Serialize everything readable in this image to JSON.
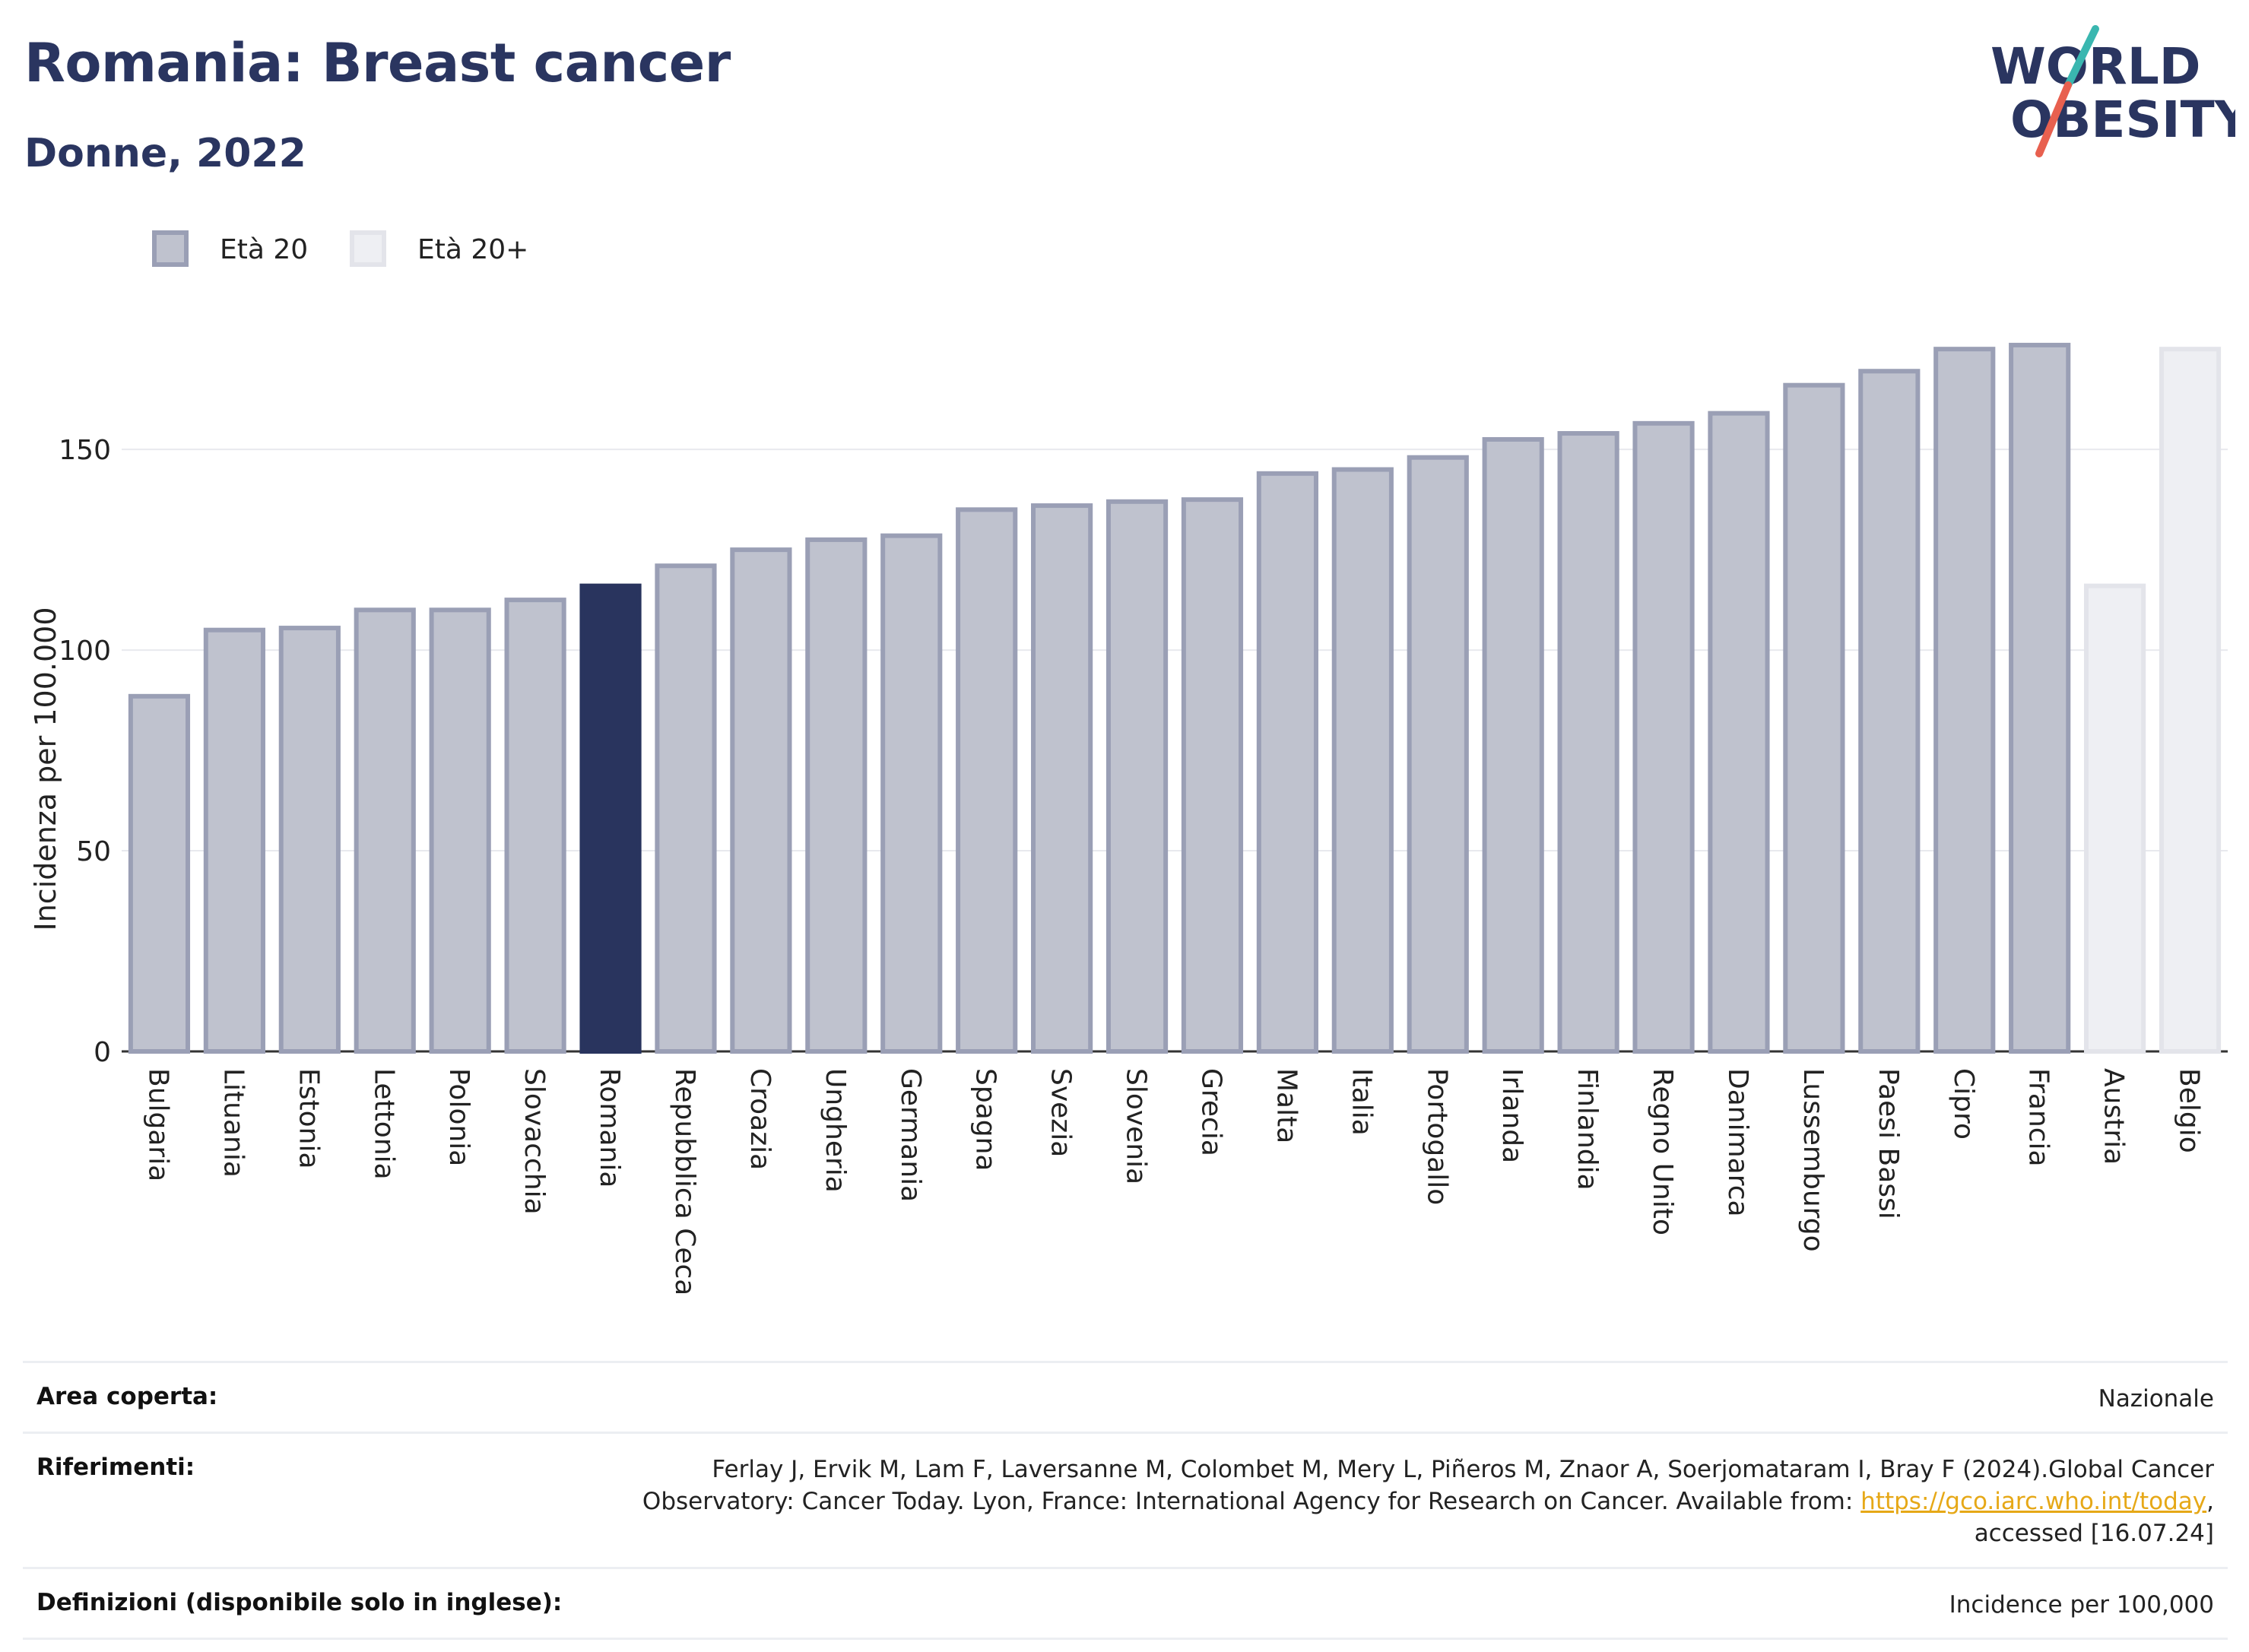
{
  "header": {
    "title": "Romania: Breast cancer",
    "subtitle": "Donne, 2022",
    "logo_line1": "WORLD",
    "logo_line2": "OBESITY"
  },
  "colors": {
    "navy": "#2a3560",
    "bar_fill": "#bfc2ce",
    "bar_stroke": "#9a9fb5",
    "bar_light_fill": "#eeeff3",
    "bar_light_stroke": "#e3e4ea",
    "highlight": "#29345e",
    "logo_teal": "#3ab7b0",
    "logo_red": "#e8604f"
  },
  "chart_data": {
    "type": "bar",
    "title": "",
    "xlabel": "",
    "ylabel": "Incidenza per 100.000",
    "ylim": [
      0,
      190
    ],
    "yticks": [
      0,
      50,
      100,
      150
    ],
    "legend": [
      {
        "name": "Età 20",
        "style": "dark"
      },
      {
        "name": "Età 20+",
        "style": "light"
      }
    ],
    "highlight_category": "Romania",
    "categories": [
      "Bulgaria",
      "Lituania",
      "Estonia",
      "Lettonia",
      "Polonia",
      "Slovacchia",
      "Romania",
      "Repubblica Ceca",
      "Croazia",
      "Ungheria",
      "Germania",
      "Spagna",
      "Svezia",
      "Slovenia",
      "Grecia",
      "Malta",
      "Italia",
      "Portogallo",
      "Irlanda",
      "Finlandia",
      "Regno Unito",
      "Danimarca",
      "Lussemburgo",
      "Paesi Bassi",
      "Cipro",
      "Francia",
      "Austria",
      "Belgio"
    ],
    "values": [
      88.5,
      105,
      105.5,
      110,
      110,
      112.5,
      116,
      121,
      125,
      127.5,
      128.5,
      135,
      136,
      137,
      137.5,
      144,
      145,
      148,
      152.5,
      154,
      156.5,
      159,
      166,
      169.5,
      175,
      176,
      116,
      175
    ],
    "series_group": [
      "Età 20",
      "Età 20",
      "Età 20",
      "Età 20",
      "Età 20",
      "Età 20",
      "Età 20",
      "Età 20",
      "Età 20",
      "Età 20",
      "Età 20",
      "Età 20",
      "Età 20",
      "Età 20",
      "Età 20",
      "Età 20",
      "Età 20",
      "Età 20",
      "Età 20",
      "Età 20",
      "Età 20",
      "Età 20",
      "Età 20",
      "Età 20",
      "Età 20",
      "Età 20",
      "Età 20+",
      "Età 20+"
    ],
    "grid": true
  },
  "meta": {
    "rows": [
      {
        "key": "Area coperta:",
        "value": "Nazionale"
      },
      {
        "key": "Riferimenti:",
        "value_prefix": "Ferlay J, Ervik M, Lam F, Laversanne M, Colombet M, Mery L, Piñeros M, Znaor A, Soerjomataram I, Bray F (2024).Global Cancer Observatory: Cancer Today. Lyon, France: International Agency for Research on Cancer. Available from: ",
        "link": "https://gco.iarc.who.int/today",
        "value_suffix": ", accessed [16.07.24]"
      },
      {
        "key": "Definizioni (disponibile solo in inglese):",
        "value": "Incidence per 100,000"
      }
    ]
  }
}
